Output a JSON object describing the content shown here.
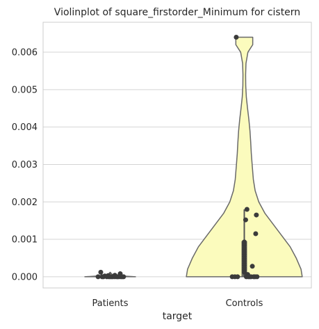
{
  "chart_data": {
    "type": "violin",
    "title": "Violinplot of square_firstorder_Minimum for cistern",
    "xlabel": "target",
    "ylabel": "",
    "categories": [
      "Patients",
      "Controls"
    ],
    "ylim": [
      -0.0003,
      0.0068
    ],
    "yticks": [
      0.0,
      0.001,
      0.002,
      0.003,
      0.004,
      0.005,
      0.006
    ],
    "ytick_labels": [
      "0.000",
      "0.001",
      "0.002",
      "0.003",
      "0.004",
      "0.005",
      "0.006"
    ],
    "grid": true,
    "violins": [
      {
        "category": "Patients",
        "color": "#fbfbbd",
        "profile": [
          [
            0.0,
            0.21
          ],
          [
            2e-05,
            0.1
          ],
          [
            5e-05,
            0.02
          ],
          [
            0.00012,
            0.0
          ]
        ],
        "box": {
          "q1": 0.0,
          "q3": 3e-05,
          "whisker_low": 0.0,
          "whisker_high": 0.00012
        }
      },
      {
        "category": "Controls",
        "color": "#fbfbbd",
        "profile": [
          [
            0.0,
            0.48
          ],
          [
            0.0002,
            0.47
          ],
          [
            0.0005,
            0.43
          ],
          [
            0.0008,
            0.38
          ],
          [
            0.0011,
            0.31
          ],
          [
            0.0014,
            0.24
          ],
          [
            0.0017,
            0.17
          ],
          [
            0.002,
            0.12
          ],
          [
            0.0023,
            0.09
          ],
          [
            0.0026,
            0.075
          ],
          [
            0.003,
            0.065
          ],
          [
            0.0033,
            0.058
          ],
          [
            0.0036,
            0.053
          ],
          [
            0.0039,
            0.047
          ],
          [
            0.0042,
            0.038
          ],
          [
            0.0045,
            0.027
          ],
          [
            0.0048,
            0.017
          ],
          [
            0.0051,
            0.012
          ],
          [
            0.0054,
            0.011
          ],
          [
            0.0057,
            0.014
          ],
          [
            0.006,
            0.03
          ],
          [
            0.0062,
            0.07
          ],
          [
            0.0064,
            0.07
          ]
        ],
        "box": {
          "q1": 0.0,
          "q3": 0.00095,
          "whisker_low": 0.0,
          "whisker_high": 0.0018
        }
      }
    ],
    "points": [
      {
        "category": "Patients",
        "values": [
          0.0,
          0.0,
          0.0,
          0.0,
          0.0,
          0.0,
          0.0,
          0.0,
          0.0,
          0.0,
          0.0,
          0.0,
          0.00012,
          8e-05,
          4e-05,
          2e-05,
          0.0,
          0.0,
          3e-05,
          0.0
        ],
        "jitter": [
          -0.18,
          -0.1,
          -0.05,
          -0.02,
          0.0,
          0.02,
          0.04,
          0.07,
          0.1,
          0.13,
          0.16,
          0.2,
          -0.14,
          0.15,
          0.07,
          -0.08,
          -0.12,
          0.11,
          -0.03,
          0.18
        ]
      },
      {
        "category": "Controls",
        "values": [
          0.0064,
          0.0018,
          0.00165,
          0.00152,
          0.00115,
          0.00093,
          0.00088,
          0.00083,
          0.00077,
          0.00072,
          0.00066,
          0.0006,
          0.00054,
          0.00048,
          0.00042,
          0.00036,
          0.0003,
          0.00028,
          0.00024,
          0.00018,
          0.00012,
          6e-05,
          0.0,
          0.0,
          0.0,
          0.0,
          0.0,
          0.0,
          0.0,
          0.0,
          0.0,
          0.0
        ],
        "jitter": [
          -0.12,
          0.04,
          0.18,
          0.02,
          0.17,
          0.0,
          0.0,
          0.0,
          0.0,
          0.0,
          0.0,
          0.0,
          0.0,
          0.0,
          0.0,
          0.0,
          0.0,
          0.12,
          0.0,
          0.0,
          0.0,
          0.05,
          -0.18,
          -0.14,
          -0.1,
          0.03,
          0.06,
          0.1,
          0.14,
          0.16,
          0.19,
          0.08
        ]
      }
    ],
    "colors": {
      "violin_fill": "#fbfbbd",
      "outline": "#696969",
      "point": "#3b3b3b",
      "box": "#555555",
      "grid": "#d4d4d4"
    }
  }
}
